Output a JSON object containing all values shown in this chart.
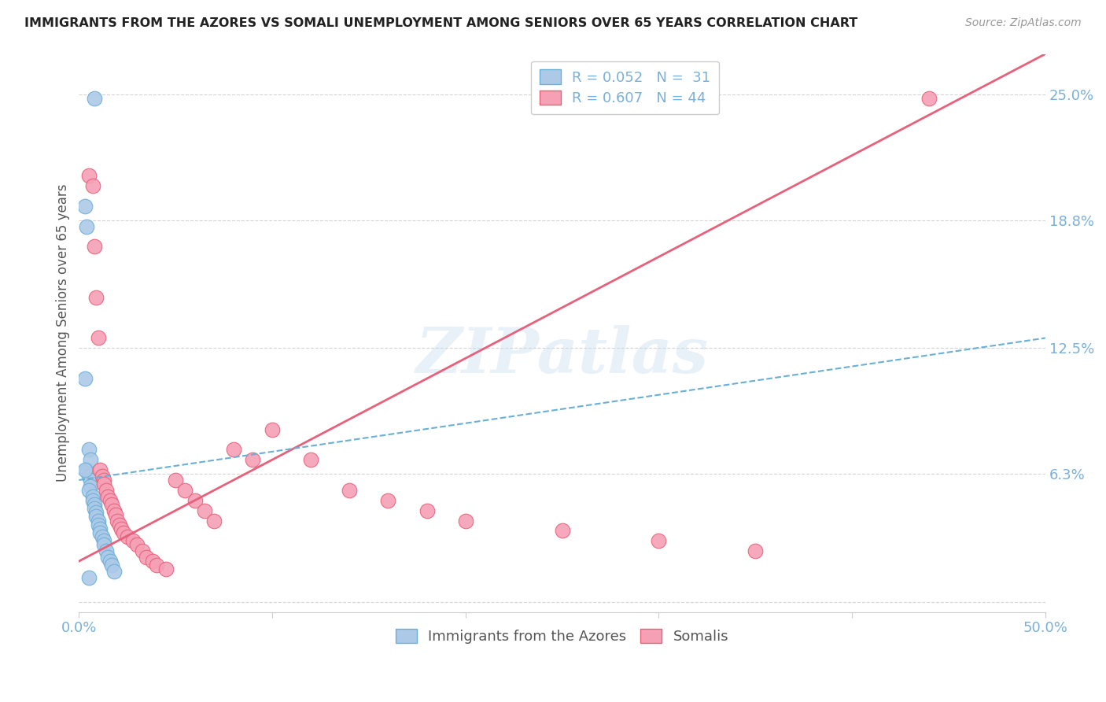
{
  "title": "IMMIGRANTS FROM THE AZORES VS SOMALI UNEMPLOYMENT AMONG SENIORS OVER 65 YEARS CORRELATION CHART",
  "source": "Source: ZipAtlas.com",
  "ylabel": "Unemployment Among Seniors over 65 years",
  "yticks": [
    0.0,
    0.063,
    0.125,
    0.188,
    0.25
  ],
  "ytick_labels": [
    "",
    "6.3%",
    "12.5%",
    "18.8%",
    "25.0%"
  ],
  "xlim": [
    0.0,
    0.5
  ],
  "ylim": [
    -0.005,
    0.27
  ],
  "color_azores": "#adc9e8",
  "color_somali": "#f5a0b5",
  "color_azores_line": "#6aafd6",
  "color_somali_line": "#e8607a",
  "color_axis_labels": "#7ab0d8",
  "watermark": "ZIPatlas",
  "legend1": "R = 0.052   N =  31",
  "legend2": "R = 0.607   N = 44",
  "bottom_legend1": "Immigrants from the Azores",
  "bottom_legend2": "Somalis",
  "azores_x": [
    0.008,
    0.003,
    0.004,
    0.003,
    0.004,
    0.005,
    0.006,
    0.006,
    0.005,
    0.007,
    0.007,
    0.008,
    0.008,
    0.009,
    0.009,
    0.01,
    0.01,
    0.011,
    0.011,
    0.012,
    0.013,
    0.013,
    0.014,
    0.015,
    0.016,
    0.017,
    0.018,
    0.005,
    0.005,
    0.006,
    0.003
  ],
  "azores_y": [
    0.248,
    0.195,
    0.185,
    0.11,
    0.065,
    0.062,
    0.06,
    0.057,
    0.055,
    0.052,
    0.05,
    0.048,
    0.046,
    0.044,
    0.042,
    0.04,
    0.038,
    0.036,
    0.034,
    0.032,
    0.03,
    0.028,
    0.025,
    0.022,
    0.02,
    0.018,
    0.015,
    0.012,
    0.075,
    0.07,
    0.065
  ],
  "somali_x": [
    0.005,
    0.007,
    0.008,
    0.009,
    0.01,
    0.011,
    0.012,
    0.013,
    0.013,
    0.014,
    0.015,
    0.016,
    0.017,
    0.018,
    0.019,
    0.02,
    0.021,
    0.022,
    0.023,
    0.025,
    0.028,
    0.03,
    0.033,
    0.035,
    0.038,
    0.04,
    0.045,
    0.05,
    0.055,
    0.06,
    0.065,
    0.07,
    0.08,
    0.09,
    0.1,
    0.12,
    0.14,
    0.16,
    0.18,
    0.2,
    0.25,
    0.3,
    0.35,
    0.44
  ],
  "somali_y": [
    0.21,
    0.205,
    0.175,
    0.15,
    0.13,
    0.065,
    0.062,
    0.06,
    0.058,
    0.055,
    0.052,
    0.05,
    0.048,
    0.045,
    0.043,
    0.04,
    0.038,
    0.036,
    0.034,
    0.032,
    0.03,
    0.028,
    0.025,
    0.022,
    0.02,
    0.018,
    0.016,
    0.06,
    0.055,
    0.05,
    0.045,
    0.04,
    0.075,
    0.07,
    0.085,
    0.07,
    0.055,
    0.05,
    0.045,
    0.04,
    0.035,
    0.03,
    0.025,
    0.248
  ]
}
